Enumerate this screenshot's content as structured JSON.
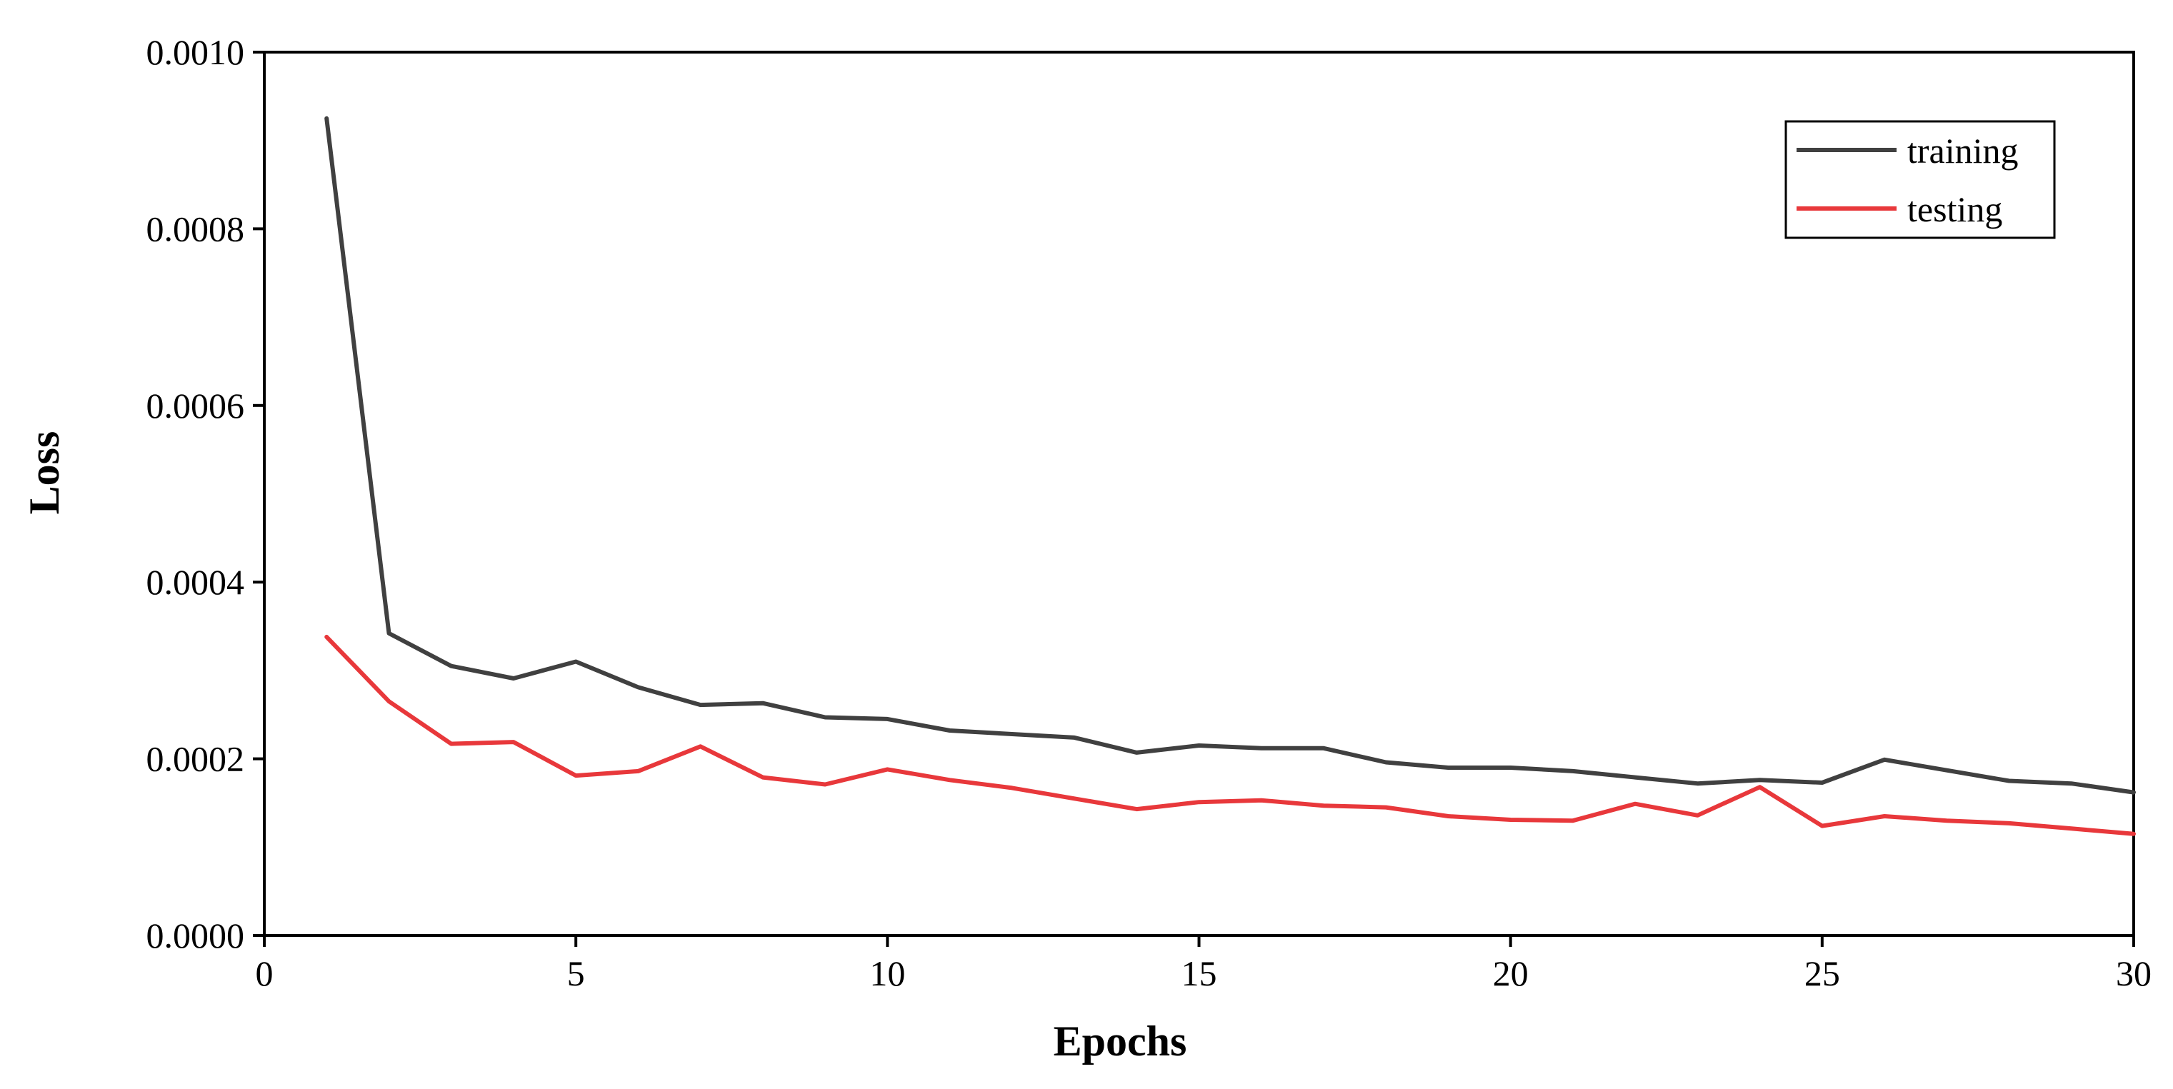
{
  "chart_data": {
    "type": "line",
    "title": "",
    "xlabel": "Epochs",
    "ylabel": "Loss",
    "xlim": [
      0,
      30
    ],
    "ylim": [
      0,
      0.001
    ],
    "xticks": [
      0,
      5,
      10,
      15,
      20,
      25,
      30
    ],
    "xtick_labels": [
      "0",
      "5",
      "10",
      "15",
      "20",
      "25",
      "30"
    ],
    "yticks": [
      0,
      0.0002,
      0.0004,
      0.0006,
      0.0008,
      0.001
    ],
    "ytick_labels": [
      "0.0000",
      "0.0002",
      "0.0004",
      "0.0006",
      "0.0008",
      "0.0010"
    ],
    "grid": false,
    "legend_position": "top-right",
    "x": [
      1,
      2,
      3,
      4,
      5,
      6,
      7,
      8,
      9,
      10,
      11,
      12,
      13,
      14,
      15,
      16,
      17,
      18,
      19,
      20,
      21,
      22,
      23,
      24,
      25,
      26,
      27,
      28,
      29,
      30
    ],
    "series": [
      {
        "name": "training",
        "color": "#404040",
        "values": [
          0.000925,
          0.000342,
          0.000305,
          0.000291,
          0.00031,
          0.000281,
          0.000261,
          0.000263,
          0.000247,
          0.000245,
          0.000232,
          0.000228,
          0.000224,
          0.000207,
          0.000215,
          0.000212,
          0.000212,
          0.000196,
          0.00019,
          0.00019,
          0.000186,
          0.000179,
          0.000172,
          0.000176,
          0.000173,
          0.000199,
          0.000187,
          0.000175,
          0.000172,
          0.000162
        ]
      },
      {
        "name": "testing",
        "color": "#e8383b",
        "values": [
          0.000338,
          0.000265,
          0.000217,
          0.000219,
          0.000181,
          0.000186,
          0.000214,
          0.000179,
          0.000171,
          0.000188,
          0.000176,
          0.000167,
          0.000155,
          0.000143,
          0.000151,
          0.000153,
          0.000147,
          0.000145,
          0.000135,
          0.000131,
          0.00013,
          0.000149,
          0.000136,
          0.000168,
          0.000124,
          0.000135,
          0.00013,
          0.000127,
          0.000121,
          0.000115
        ]
      }
    ]
  }
}
